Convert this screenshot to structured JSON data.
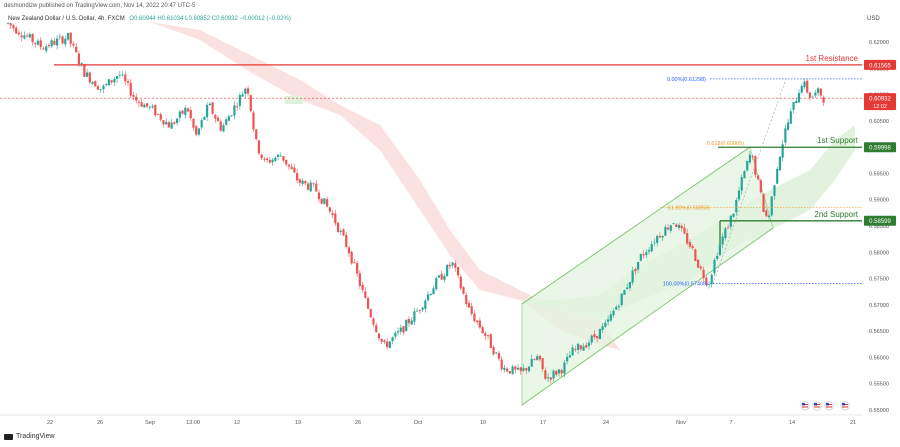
{
  "header": {
    "author": "desmondizw published on TradingView.com, Nov 14, 2022 20:47 UTC-5",
    "symbol_line": "New Zealand Dollar / U.S. Dollar, 4h, FXCM",
    "ohlc": "O0.60944  H0.61034  L0.60852  C0.60932  −0.00012 (−0.02%)"
  },
  "axis_currency": "USD",
  "footer_brand": "TradingView",
  "colors": {
    "up": "#26a69a",
    "down": "#ef5350",
    "resistance": "#e53935",
    "support": "#2e7d32",
    "channel_fill": "#e3f5e1",
    "channel_line": "#7cc66b",
    "cloud_red": "#fbdcdc",
    "cloud_green": "#dff1dc",
    "fib_blue": "#2962ff",
    "fib_orange": "#f29d2a",
    "price_tag": "#e53935"
  },
  "chart_data": {
    "type": "candlestick",
    "ylim": [
      0.55,
      0.625
    ],
    "y_ticks": [
      "0.62000",
      "0.61500",
      "0.61000",
      "0.60500",
      "0.60000",
      "0.59500",
      "0.59000",
      "0.58500",
      "0.58000",
      "0.57500",
      "0.57000",
      "0.56500",
      "0.56000",
      "0.55500",
      "0.55000"
    ],
    "x_ticks": [
      "22",
      "26",
      "Sep",
      "13:00",
      "12",
      "19",
      "26",
      "Oct",
      "10",
      "17",
      "24",
      "Nov",
      "7",
      "14",
      "21"
    ],
    "levels": {
      "resistance": {
        "label": "1st Resistance",
        "value": 0.61565,
        "tag": "0.61565"
      },
      "support1": {
        "label": "1st Support",
        "value": 0.59998,
        "tag": "0.59998"
      },
      "support2": {
        "label": "2nd Support",
        "value": 0.58599,
        "tag": "0.58599"
      }
    },
    "current_price": {
      "value": 0.60932,
      "tag": "0.60932",
      "countdown": "12:02"
    },
    "fibonacci": [
      {
        "label": "0.00%(0.61298)",
        "value": 0.61298
      },
      {
        "label": "0.618(0.60005)",
        "value": 0.60005
      },
      {
        "label": "61.80%(0.58853)",
        "value": 0.58853
      },
      {
        "label": "100.00%(0.57406)",
        "value": 0.57406
      }
    ],
    "price_path": [
      [
        0,
        0.6235
      ],
      [
        0.04,
        0.619
      ],
      [
        0.07,
        0.621
      ],
      [
        0.09,
        0.614
      ],
      [
        0.11,
        0.611
      ],
      [
        0.13,
        0.614
      ],
      [
        0.15,
        0.609
      ],
      [
        0.17,
        0.607
      ],
      [
        0.19,
        0.604
      ],
      [
        0.21,
        0.6075
      ],
      [
        0.22,
        0.602
      ],
      [
        0.235,
        0.608
      ],
      [
        0.25,
        0.6035
      ],
      [
        0.27,
        0.609
      ],
      [
        0.28,
        0.612
      ],
      [
        0.29,
        0.601
      ],
      [
        0.3,
        0.597
      ],
      [
        0.32,
        0.5985
      ],
      [
        0.34,
        0.5935
      ],
      [
        0.36,
        0.592
      ],
      [
        0.38,
        0.587
      ],
      [
        0.4,
        0.58
      ],
      [
        0.42,
        0.57
      ],
      [
        0.44,
        0.562
      ],
      [
        0.46,
        0.565
      ],
      [
        0.48,
        0.569
      ],
      [
        0.5,
        0.574
      ],
      [
        0.52,
        0.578
      ],
      [
        0.54,
        0.569
      ],
      [
        0.56,
        0.564
      ],
      [
        0.58,
        0.558
      ],
      [
        0.6,
        0.557
      ],
      [
        0.62,
        0.56
      ],
      [
        0.63,
        0.556
      ],
      [
        0.65,
        0.558
      ],
      [
        0.66,
        0.561
      ],
      [
        0.68,
        0.563
      ],
      [
        0.7,
        0.566
      ],
      [
        0.72,
        0.572
      ],
      [
        0.74,
        0.579
      ],
      [
        0.76,
        0.583
      ],
      [
        0.78,
        0.586
      ],
      [
        0.8,
        0.581
      ],
      [
        0.81,
        0.577
      ],
      [
        0.82,
        0.574
      ],
      [
        0.83,
        0.58
      ],
      [
        0.85,
        0.588
      ],
      [
        0.86,
        0.594
      ],
      [
        0.87,
        0.599
      ],
      [
        0.88,
        0.592
      ],
      [
        0.885,
        0.588
      ],
      [
        0.89,
        0.586
      ],
      [
        0.9,
        0.596
      ],
      [
        0.91,
        0.603
      ],
      [
        0.92,
        0.608
      ],
      [
        0.93,
        0.6125
      ],
      [
        0.94,
        0.6095
      ],
      [
        0.95,
        0.6105
      ],
      [
        0.955,
        0.6093
      ]
    ]
  }
}
